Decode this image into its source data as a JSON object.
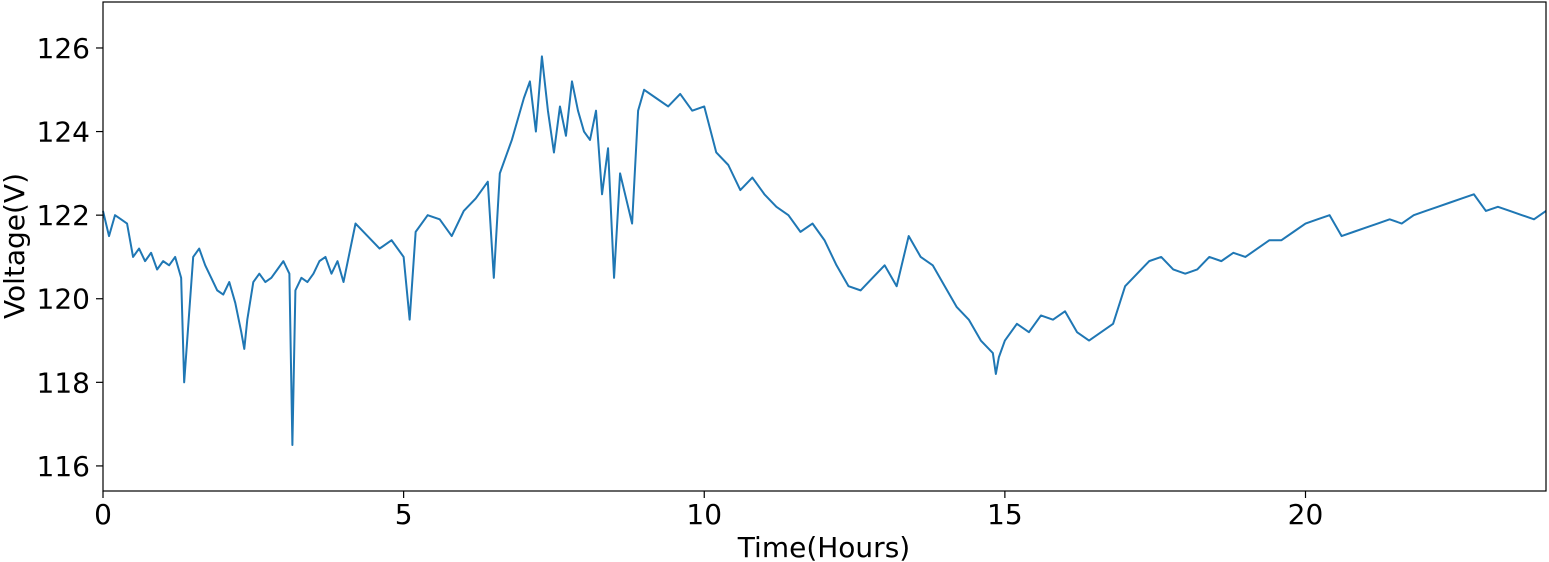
{
  "chart_data": {
    "type": "line",
    "title": "",
    "xlabel": "Time(Hours)",
    "ylabel": "Voltage(V)",
    "xlim": [
      0,
      24
    ],
    "ylim": [
      115.4,
      127.1
    ],
    "xticks": [
      0,
      5,
      10,
      15,
      20
    ],
    "yticks": [
      116,
      118,
      120,
      122,
      124,
      126
    ],
    "grid": false,
    "legend": "none",
    "series": [
      {
        "color": "#1f77b4",
        "x": [
          0.0,
          0.1,
          0.2,
          0.3,
          0.4,
          0.5,
          0.6,
          0.7,
          0.8,
          0.9,
          1.0,
          1.1,
          1.2,
          1.3,
          1.35,
          1.4,
          1.5,
          1.6,
          1.7,
          1.8,
          1.9,
          2.0,
          2.1,
          2.2,
          2.3,
          2.35,
          2.4,
          2.5,
          2.6,
          2.7,
          2.8,
          2.9,
          3.0,
          3.1,
          3.15,
          3.2,
          3.3,
          3.4,
          3.5,
          3.6,
          3.7,
          3.8,
          3.9,
          4.0,
          4.2,
          4.4,
          4.6,
          4.8,
          5.0,
          5.1,
          5.2,
          5.4,
          5.6,
          5.8,
          6.0,
          6.2,
          6.4,
          6.5,
          6.6,
          6.8,
          7.0,
          7.1,
          7.2,
          7.3,
          7.4,
          7.5,
          7.6,
          7.7,
          7.8,
          7.9,
          8.0,
          8.1,
          8.2,
          8.3,
          8.4,
          8.5,
          8.6,
          8.7,
          8.8,
          8.9,
          9.0,
          9.2,
          9.4,
          9.6,
          9.8,
          10.0,
          10.2,
          10.4,
          10.6,
          10.8,
          11.0,
          11.2,
          11.4,
          11.6,
          11.8,
          12.0,
          12.2,
          12.4,
          12.6,
          12.8,
          13.0,
          13.2,
          13.4,
          13.6,
          13.8,
          14.0,
          14.2,
          14.4,
          14.6,
          14.8,
          14.85,
          14.9,
          15.0,
          15.2,
          15.4,
          15.6,
          15.8,
          16.0,
          16.2,
          16.4,
          16.6,
          16.8,
          17.0,
          17.2,
          17.4,
          17.6,
          17.8,
          18.0,
          18.2,
          18.4,
          18.6,
          18.8,
          19.0,
          19.2,
          19.4,
          19.6,
          19.8,
          20.0,
          20.2,
          20.4,
          20.6,
          20.8,
          21.0,
          21.2,
          21.4,
          21.6,
          21.8,
          22.0,
          22.2,
          22.4,
          22.6,
          22.8,
          23.0,
          23.2,
          23.4,
          23.6,
          23.8,
          24.0
        ],
        "values": [
          122.1,
          121.5,
          122.0,
          121.9,
          121.8,
          121.0,
          121.2,
          120.9,
          121.1,
          120.7,
          120.9,
          120.8,
          121.0,
          120.5,
          118.0,
          119.0,
          121.0,
          121.2,
          120.8,
          120.5,
          120.2,
          120.1,
          120.4,
          119.9,
          119.2,
          118.8,
          119.5,
          120.4,
          120.6,
          120.4,
          120.5,
          120.7,
          120.9,
          120.6,
          116.5,
          120.2,
          120.5,
          120.4,
          120.6,
          120.9,
          121.0,
          120.6,
          120.9,
          120.4,
          121.8,
          121.5,
          121.2,
          121.4,
          121.0,
          119.5,
          121.6,
          122.0,
          121.9,
          121.5,
          122.1,
          122.4,
          122.8,
          120.5,
          123.0,
          123.8,
          124.8,
          125.2,
          124.0,
          125.8,
          124.5,
          123.5,
          124.6,
          123.9,
          125.2,
          124.5,
          124.0,
          123.8,
          124.5,
          122.5,
          123.6,
          120.5,
          123.0,
          122.4,
          121.8,
          124.5,
          125.0,
          124.8,
          124.6,
          124.9,
          124.5,
          124.6,
          123.5,
          123.2,
          122.6,
          122.9,
          122.5,
          122.2,
          122.0,
          121.6,
          121.8,
          121.4,
          120.8,
          120.3,
          120.2,
          120.5,
          120.8,
          120.3,
          121.5,
          121.0,
          120.8,
          120.3,
          119.8,
          119.5,
          119.0,
          118.7,
          118.2,
          118.6,
          119.0,
          119.4,
          119.2,
          119.6,
          119.5,
          119.7,
          119.2,
          119.0,
          119.2,
          119.4,
          120.3,
          120.6,
          120.9,
          121.0,
          120.7,
          120.6,
          120.7,
          121.0,
          120.9,
          121.1,
          121.0,
          121.2,
          121.4,
          121.4,
          121.6,
          121.8,
          121.9,
          122.0,
          121.5,
          121.6,
          121.7,
          121.8,
          121.9,
          121.8,
          122.0,
          122.1,
          122.2,
          122.3,
          122.4,
          122.5,
          122.1,
          122.2,
          122.1,
          122.0,
          121.9,
          122.1
        ]
      }
    ]
  }
}
